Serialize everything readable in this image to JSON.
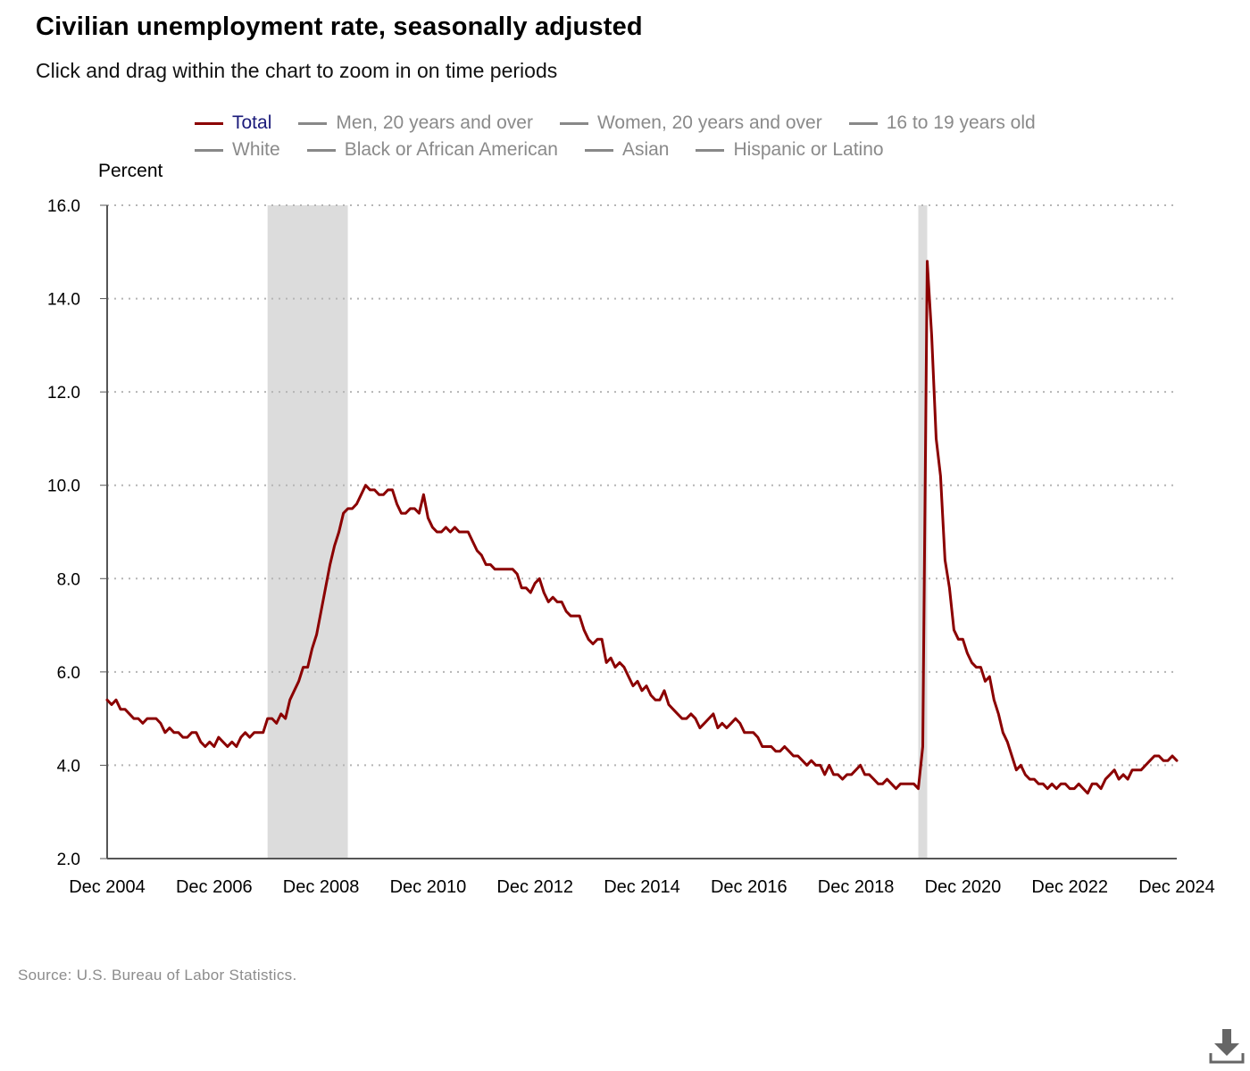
{
  "title": "Civilian unemployment rate, seasonally adjusted",
  "subtitle": "Click and drag within the chart to zoom in on time periods",
  "legend": {
    "rows": [
      [
        {
          "label": "Total",
          "active": true
        },
        {
          "label": "Men, 20 years and over",
          "active": false
        },
        {
          "label": "Women, 20 years and over",
          "active": false
        },
        {
          "label": "16 to 19 years old",
          "active": false
        }
      ],
      [
        {
          "label": "White",
          "active": false
        },
        {
          "label": "Black or African American",
          "active": false
        },
        {
          "label": "Asian",
          "active": false
        },
        {
          "label": "Hispanic or Latino",
          "active": false
        }
      ]
    ]
  },
  "source": "Source: U.S. Bureau of Labor Statistics.",
  "colors": {
    "series": "#8b0000",
    "recession": "#dcdcdc",
    "grid": "#b5b5b5",
    "axis": "#555555",
    "legend_active": "#1a1a7a",
    "legend_inactive": "#8a8a8a"
  },
  "icons": {
    "download": "download-icon"
  },
  "chart_data": {
    "type": "line",
    "title": "Civilian unemployment rate, seasonally adjusted",
    "ylabel": "Percent",
    "ylim": [
      2.0,
      16.0
    ],
    "yticks": [
      "2.0",
      "4.0",
      "6.0",
      "8.0",
      "10.0",
      "12.0",
      "14.0",
      "16.0"
    ],
    "xlim": [
      "Dec 2004",
      "Dec 2024"
    ],
    "xticks": [
      "Dec 2004",
      "Dec 2006",
      "Dec 2008",
      "Dec 2010",
      "Dec 2012",
      "Dec 2014",
      "Dec 2016",
      "Dec 2018",
      "Dec 2020",
      "Dec 2022",
      "Dec 2024"
    ],
    "grid": "horizontal dotted",
    "recessions": [
      {
        "start": "Dec 2007",
        "end": "Jun 2009"
      },
      {
        "start": "Feb 2020",
        "end": "Apr 2020"
      }
    ],
    "series": [
      {
        "name": "Total",
        "x": [
          "2004-12",
          "2005-01",
          "2005-02",
          "2005-03",
          "2005-04",
          "2005-05",
          "2005-06",
          "2005-07",
          "2005-08",
          "2005-09",
          "2005-10",
          "2005-11",
          "2005-12",
          "2006-01",
          "2006-02",
          "2006-03",
          "2006-04",
          "2006-05",
          "2006-06",
          "2006-07",
          "2006-08",
          "2006-09",
          "2006-10",
          "2006-11",
          "2006-12",
          "2007-01",
          "2007-02",
          "2007-03",
          "2007-04",
          "2007-05",
          "2007-06",
          "2007-07",
          "2007-08",
          "2007-09",
          "2007-10",
          "2007-11",
          "2007-12",
          "2008-01",
          "2008-02",
          "2008-03",
          "2008-04",
          "2008-05",
          "2008-06",
          "2008-07",
          "2008-08",
          "2008-09",
          "2008-10",
          "2008-11",
          "2008-12",
          "2009-01",
          "2009-02",
          "2009-03",
          "2009-04",
          "2009-05",
          "2009-06",
          "2009-07",
          "2009-08",
          "2009-09",
          "2009-10",
          "2009-11",
          "2009-12",
          "2010-01",
          "2010-02",
          "2010-03",
          "2010-04",
          "2010-05",
          "2010-06",
          "2010-07",
          "2010-08",
          "2010-09",
          "2010-10",
          "2010-11",
          "2010-12",
          "2011-01",
          "2011-02",
          "2011-03",
          "2011-04",
          "2011-05",
          "2011-06",
          "2011-07",
          "2011-08",
          "2011-09",
          "2011-10",
          "2011-11",
          "2011-12",
          "2012-01",
          "2012-02",
          "2012-03",
          "2012-04",
          "2012-05",
          "2012-06",
          "2012-07",
          "2012-08",
          "2012-09",
          "2012-10",
          "2012-11",
          "2012-12",
          "2013-01",
          "2013-02",
          "2013-03",
          "2013-04",
          "2013-05",
          "2013-06",
          "2013-07",
          "2013-08",
          "2013-09",
          "2013-10",
          "2013-11",
          "2013-12",
          "2014-01",
          "2014-02",
          "2014-03",
          "2014-04",
          "2014-05",
          "2014-06",
          "2014-07",
          "2014-08",
          "2014-09",
          "2014-10",
          "2014-11",
          "2014-12",
          "2015-01",
          "2015-02",
          "2015-03",
          "2015-04",
          "2015-05",
          "2015-06",
          "2015-07",
          "2015-08",
          "2015-09",
          "2015-10",
          "2015-11",
          "2015-12",
          "2016-01",
          "2016-02",
          "2016-03",
          "2016-04",
          "2016-05",
          "2016-06",
          "2016-07",
          "2016-08",
          "2016-09",
          "2016-10",
          "2016-11",
          "2016-12",
          "2017-01",
          "2017-02",
          "2017-03",
          "2017-04",
          "2017-05",
          "2017-06",
          "2017-07",
          "2017-08",
          "2017-09",
          "2017-10",
          "2017-11",
          "2017-12",
          "2018-01",
          "2018-02",
          "2018-03",
          "2018-04",
          "2018-05",
          "2018-06",
          "2018-07",
          "2018-08",
          "2018-09",
          "2018-10",
          "2018-11",
          "2018-12",
          "2019-01",
          "2019-02",
          "2019-03",
          "2019-04",
          "2019-05",
          "2019-06",
          "2019-07",
          "2019-08",
          "2019-09",
          "2019-10",
          "2019-11",
          "2019-12",
          "2020-01",
          "2020-02",
          "2020-03",
          "2020-04",
          "2020-05",
          "2020-06",
          "2020-07",
          "2020-08",
          "2020-09",
          "2020-10",
          "2020-11",
          "2020-12",
          "2021-01",
          "2021-02",
          "2021-03",
          "2021-04",
          "2021-05",
          "2021-06",
          "2021-07",
          "2021-08",
          "2021-09",
          "2021-10",
          "2021-11",
          "2021-12",
          "2022-01",
          "2022-02",
          "2022-03",
          "2022-04",
          "2022-05",
          "2022-06",
          "2022-07",
          "2022-08",
          "2022-09",
          "2022-10",
          "2022-11",
          "2022-12",
          "2023-01",
          "2023-02",
          "2023-03",
          "2023-04",
          "2023-05",
          "2023-06",
          "2023-07",
          "2023-08",
          "2023-09",
          "2023-10",
          "2023-11",
          "2023-12",
          "2024-01",
          "2024-02",
          "2024-03",
          "2024-04",
          "2024-05",
          "2024-06",
          "2024-07",
          "2024-08",
          "2024-09",
          "2024-10",
          "2024-11",
          "2024-12"
        ],
        "values": [
          5.4,
          5.3,
          5.4,
          5.2,
          5.2,
          5.1,
          5.0,
          5.0,
          4.9,
          5.0,
          5.0,
          5.0,
          4.9,
          4.7,
          4.8,
          4.7,
          4.7,
          4.6,
          4.6,
          4.7,
          4.7,
          4.5,
          4.4,
          4.5,
          4.4,
          4.6,
          4.5,
          4.4,
          4.5,
          4.4,
          4.6,
          4.7,
          4.6,
          4.7,
          4.7,
          4.7,
          5.0,
          5.0,
          4.9,
          5.1,
          5.0,
          5.4,
          5.6,
          5.8,
          6.1,
          6.1,
          6.5,
          6.8,
          7.3,
          7.8,
          8.3,
          8.7,
          9.0,
          9.4,
          9.5,
          9.5,
          9.6,
          9.8,
          10.0,
          9.9,
          9.9,
          9.8,
          9.8,
          9.9,
          9.9,
          9.6,
          9.4,
          9.4,
          9.5,
          9.5,
          9.4,
          9.8,
          9.3,
          9.1,
          9.0,
          9.0,
          9.1,
          9.0,
          9.1,
          9.0,
          9.0,
          9.0,
          8.8,
          8.6,
          8.5,
          8.3,
          8.3,
          8.2,
          8.2,
          8.2,
          8.2,
          8.2,
          8.1,
          7.8,
          7.8,
          7.7,
          7.9,
          8.0,
          7.7,
          7.5,
          7.6,
          7.5,
          7.5,
          7.3,
          7.2,
          7.2,
          7.2,
          6.9,
          6.7,
          6.6,
          6.7,
          6.7,
          6.2,
          6.3,
          6.1,
          6.2,
          6.1,
          5.9,
          5.7,
          5.8,
          5.6,
          5.7,
          5.5,
          5.4,
          5.4,
          5.6,
          5.3,
          5.2,
          5.1,
          5.0,
          5.0,
          5.1,
          5.0,
          4.8,
          4.9,
          5.0,
          5.1,
          4.8,
          4.9,
          4.8,
          4.9,
          5.0,
          4.9,
          4.7,
          4.7,
          4.7,
          4.6,
          4.4,
          4.4,
          4.4,
          4.3,
          4.3,
          4.4,
          4.3,
          4.2,
          4.2,
          4.1,
          4.0,
          4.1,
          4.0,
          4.0,
          3.8,
          4.0,
          3.8,
          3.8,
          3.7,
          3.8,
          3.8,
          3.9,
          4.0,
          3.8,
          3.8,
          3.7,
          3.6,
          3.6,
          3.7,
          3.6,
          3.5,
          3.6,
          3.6,
          3.6,
          3.6,
          3.5,
          4.4,
          14.8,
          13.2,
          11.0,
          10.2,
          8.4,
          7.8,
          6.9,
          6.7,
          6.7,
          6.4,
          6.2,
          6.1,
          6.1,
          5.8,
          5.9,
          5.4,
          5.1,
          4.7,
          4.5,
          4.2,
          3.9,
          4.0,
          3.8,
          3.7,
          3.7,
          3.6,
          3.6,
          3.5,
          3.6,
          3.5,
          3.6,
          3.6,
          3.5,
          3.5,
          3.6,
          3.5,
          3.4,
          3.6,
          3.6,
          3.5,
          3.7,
          3.8,
          3.9,
          3.7,
          3.8,
          3.7,
          3.9,
          3.9,
          3.9,
          4.0,
          4.1,
          4.2,
          4.2,
          4.1,
          4.1,
          4.2,
          4.1
        ]
      }
    ]
  }
}
